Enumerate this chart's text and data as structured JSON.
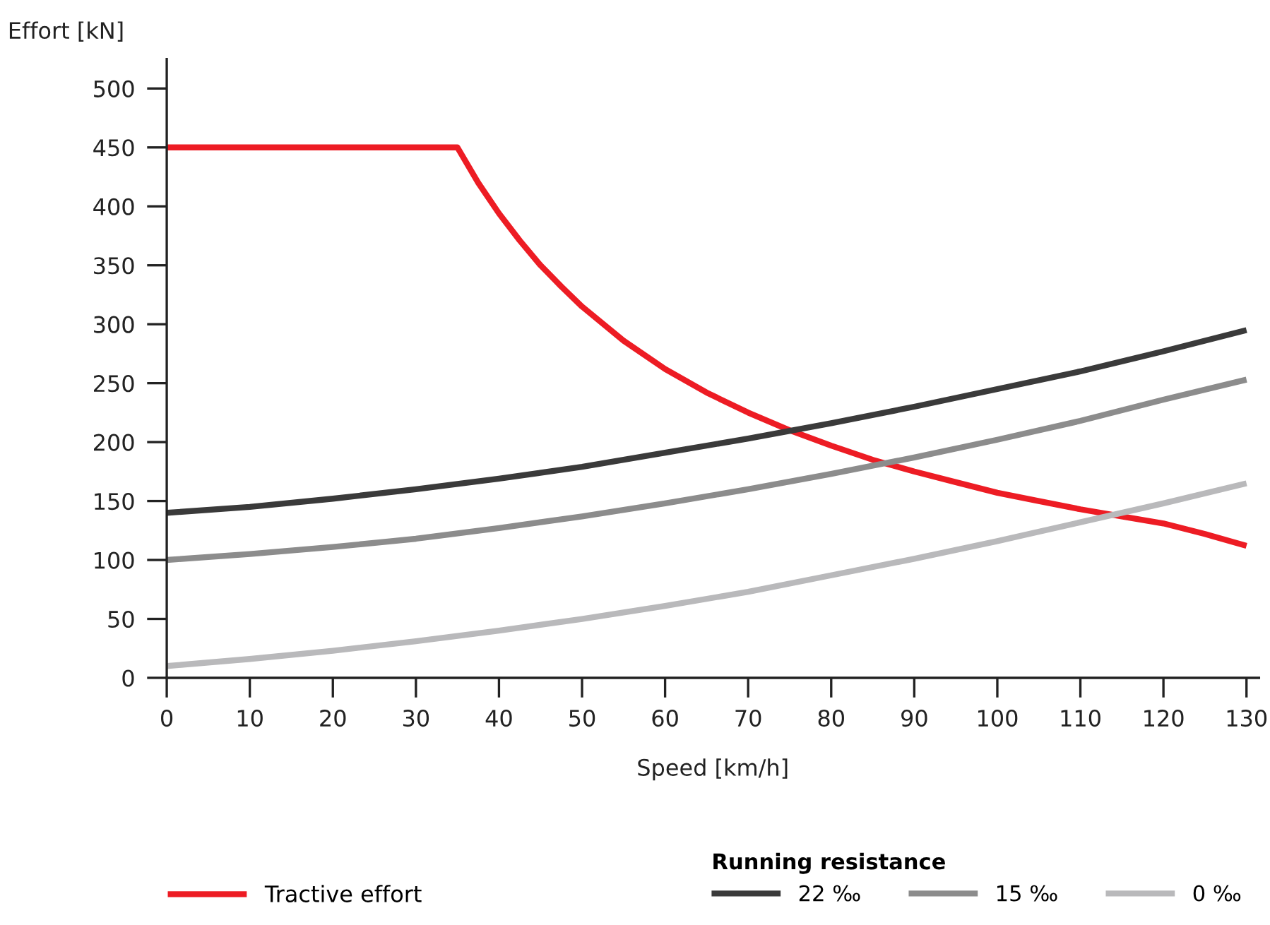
{
  "chart_data": {
    "type": "line",
    "xlabel": "Speed [km/h]",
    "ylabel": "Effort [kN]",
    "legend_title": "Running resistance",
    "xlim": [
      0,
      131.5
    ],
    "ylim": [
      0,
      525
    ],
    "xticks": [
      0,
      10,
      20,
      30,
      40,
      50,
      60,
      70,
      80,
      90,
      100,
      110,
      120,
      130
    ],
    "yticks": [
      0,
      50,
      100,
      150,
      200,
      250,
      300,
      350,
      400,
      450,
      500
    ],
    "grid": false,
    "legend": "bottom",
    "marker": "none",
    "line_style": "solid",
    "series": [
      {
        "name": "Tractive effort",
        "color": "#ed1c24",
        "x": [
          0,
          35,
          37.5,
          40,
          42.5,
          45,
          47.5,
          50,
          55,
          60,
          65,
          70,
          75,
          80,
          85,
          90,
          95,
          100,
          105,
          110,
          115,
          120,
          125,
          130
        ],
        "values": [
          450,
          450,
          420,
          394,
          371,
          350,
          332,
          315,
          286,
          262,
          242,
          225,
          210,
          197,
          185,
          175,
          166,
          157,
          150,
          143,
          137,
          131,
          122,
          112
        ]
      },
      {
        "name": "22 ‰",
        "color": "#3a3a3a",
        "x": [
          0,
          10,
          20,
          30,
          40,
          50,
          60,
          70,
          80,
          90,
          100,
          110,
          120,
          130
        ],
        "values": [
          140,
          145,
          152,
          160,
          169,
          179,
          191,
          203,
          216,
          230,
          245,
          260,
          277,
          295
        ]
      },
      {
        "name": "15 ‰",
        "color": "#8c8c8c",
        "x": [
          0,
          10,
          20,
          30,
          40,
          50,
          60,
          70,
          80,
          90,
          100,
          110,
          120,
          130
        ],
        "values": [
          100,
          105,
          111,
          118,
          127,
          137,
          148,
          160,
          173,
          187,
          202,
          218,
          236,
          253
        ]
      },
      {
        "name": "0 ‰",
        "color": "#b9b9bb",
        "x": [
          0,
          10,
          20,
          30,
          40,
          50,
          60,
          70,
          80,
          90,
          100,
          110,
          120,
          130
        ],
        "values": [
          10,
          16,
          23,
          31,
          40,
          50,
          61,
          73,
          87,
          101,
          116,
          132,
          148,
          165
        ]
      }
    ]
  }
}
